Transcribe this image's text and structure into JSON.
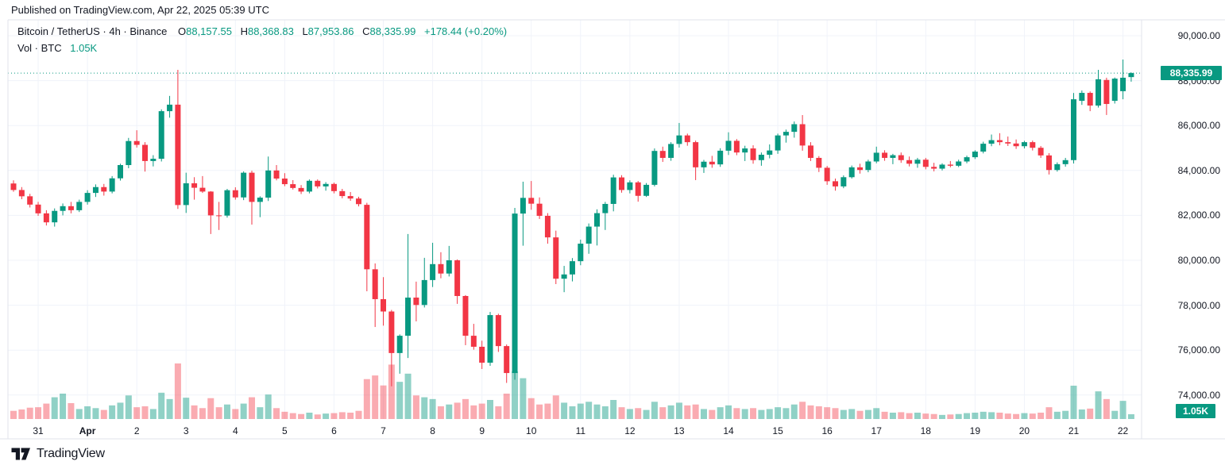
{
  "published_bar": {
    "text": "Published on TradingView.com, Apr 22, 2025 05:39 UTC"
  },
  "legend": {
    "symbol_title": "Bitcoin / TetherUS · 4h · Binance",
    "open_label": "O",
    "open": "88,157.55",
    "high_label": "H",
    "high": "88,368.83",
    "low_label": "L",
    "low": "87,953.86",
    "close_label": "C",
    "close": "88,335.99",
    "change": "+178.44 (+0.20%)",
    "volume_label": "Vol · BTC",
    "volume_value": "1.05K"
  },
  "axis": {
    "price_labels": [
      "90,000.00",
      "88,000.00",
      "86,000.00",
      "84,000.00",
      "82,000.00",
      "80,000.00",
      "78,000.00",
      "76,000.00",
      "74,000.00"
    ],
    "price_values": [
      90000,
      88000,
      86000,
      84000,
      82000,
      80000,
      78000,
      76000,
      74000
    ],
    "date_labels": [
      {
        "t": "31",
        "b": 3
      },
      {
        "t": "Apr",
        "b": 9,
        "bold": true
      },
      {
        "t": "2",
        "b": 15
      },
      {
        "t": "3",
        "b": 21
      },
      {
        "t": "4",
        "b": 27
      },
      {
        "t": "5",
        "b": 33
      },
      {
        "t": "6",
        "b": 39
      },
      {
        "t": "7",
        "b": 45
      },
      {
        "t": "8",
        "b": 51
      },
      {
        "t": "9",
        "b": 57
      },
      {
        "t": "10",
        "b": 63
      },
      {
        "t": "11",
        "b": 69
      },
      {
        "t": "12",
        "b": 75
      },
      {
        "t": "13",
        "b": 81
      },
      {
        "t": "14",
        "b": 87
      },
      {
        "t": "15",
        "b": 93
      },
      {
        "t": "16",
        "b": 99
      },
      {
        "t": "17",
        "b": 105
      },
      {
        "t": "18",
        "b": 111
      },
      {
        "t": "19",
        "b": 117
      },
      {
        "t": "20",
        "b": 123
      },
      {
        "t": "21",
        "b": 129
      },
      {
        "t": "22",
        "b": 135
      }
    ],
    "last_price_label": "88,335.99",
    "last_volume_label": "1.05K"
  },
  "footer": {
    "brand": "TradingView"
  },
  "colors": {
    "up": "#089981",
    "down": "#f23645",
    "volume_up": "rgba(8,153,129,0.45)",
    "volume_down": "rgba(242,54,69,0.42)",
    "grid": "#f0f3fa",
    "border": "#e0e3eb",
    "text": "#131722",
    "accent": "#089981",
    "badge_bg": "#089981"
  },
  "chart_data": {
    "type": "candlestick",
    "title": "Bitcoin / TetherUS",
    "interval": "4h",
    "exchange": "Binance",
    "legend_ohlc": {
      "open": 88157.55,
      "high": 88368.83,
      "low": 87953.86,
      "close": 88335.99,
      "change": 178.44,
      "change_pct": 0.2
    },
    "last_close": 88335.99,
    "last_volume_btc": 1050,
    "ylim": [
      72930,
      90710
    ],
    "y_grid_step": 2000,
    "x_range": [
      "Mar 30 12:00 UTC",
      "Apr 22 04:00 UTC"
    ],
    "grid": true,
    "legend_position": "top-left",
    "price_axis_position": "right",
    "candles_format": [
      "open",
      "high",
      "low",
      "close",
      "volume_btc"
    ],
    "candles": [
      [
        83420,
        83560,
        83050,
        83130,
        1800
      ],
      [
        83130,
        83260,
        82720,
        82850,
        2100
      ],
      [
        82850,
        82960,
        82350,
        82480,
        2500
      ],
      [
        82480,
        82600,
        81980,
        82090,
        2600
      ],
      [
        82090,
        82230,
        81550,
        81690,
        3400
      ],
      [
        81690,
        82310,
        81500,
        82200,
        4800
      ],
      [
        82200,
        82530,
        82000,
        82410,
        5600
      ],
      [
        82410,
        82600,
        82090,
        82230,
        3500
      ],
      [
        82230,
        82700,
        82150,
        82600,
        2200
      ],
      [
        82600,
        83120,
        82480,
        83000,
        2800
      ],
      [
        83000,
        83380,
        82820,
        83260,
        2400
      ],
      [
        83260,
        83400,
        82880,
        83060,
        2000
      ],
      [
        83060,
        83750,
        82980,
        83650,
        3000
      ],
      [
        83650,
        84300,
        83550,
        84240,
        3600
      ],
      [
        84240,
        85450,
        84100,
        85310,
        5200
      ],
      [
        85310,
        85790,
        85020,
        85140,
        2600
      ],
      [
        85140,
        85260,
        83950,
        84420,
        2800
      ],
      [
        84420,
        84680,
        84180,
        84520,
        2200
      ],
      [
        84520,
        86720,
        84400,
        86640,
        5800
      ],
      [
        86640,
        87320,
        86350,
        86930,
        4400
      ],
      [
        86930,
        88480,
        82290,
        82460,
        12250
      ],
      [
        82460,
        83900,
        82110,
        83430,
        4700
      ],
      [
        83430,
        83700,
        82700,
        83230,
        3000
      ],
      [
        83230,
        83750,
        83000,
        83060,
        2400
      ],
      [
        83060,
        83080,
        81170,
        82000,
        4600
      ],
      [
        82000,
        82600,
        81350,
        81990,
        2600
      ],
      [
        81990,
        83180,
        81900,
        83120,
        3200
      ],
      [
        83120,
        83250,
        82700,
        82800,
        2200
      ],
      [
        82800,
        83960,
        82680,
        83900,
        3400
      ],
      [
        83900,
        83990,
        81590,
        82600,
        4800
      ],
      [
        82600,
        82850,
        81920,
        82790,
        2600
      ],
      [
        82790,
        84620,
        82640,
        84000,
        5400
      ],
      [
        84000,
        84240,
        83560,
        83640,
        2400
      ],
      [
        83640,
        83880,
        83300,
        83390,
        1600
      ],
      [
        83390,
        83570,
        83150,
        83220,
        1300
      ],
      [
        83220,
        83350,
        82950,
        83060,
        1100
      ],
      [
        83060,
        83600,
        82980,
        83540,
        1400
      ],
      [
        83540,
        83600,
        83200,
        83290,
        1000
      ],
      [
        83290,
        83480,
        83100,
        83400,
        1200
      ],
      [
        83400,
        83460,
        82980,
        83080,
        1300
      ],
      [
        83080,
        83180,
        82760,
        82860,
        1500
      ],
      [
        82860,
        83040,
        82650,
        82750,
        1400
      ],
      [
        82750,
        82830,
        82400,
        82500,
        1800
      ],
      [
        82470,
        82560,
        78620,
        79600,
        8800
      ],
      [
        79600,
        79860,
        77030,
        78270,
        9600
      ],
      [
        78270,
        79250,
        77090,
        77720,
        7400
      ],
      [
        77720,
        77790,
        74390,
        75870,
        12000
      ],
      [
        75870,
        76700,
        74950,
        76640,
        8200
      ],
      [
        76640,
        81170,
        75650,
        78340,
        10000
      ],
      [
        78340,
        79050,
        77280,
        78010,
        5200
      ],
      [
        78010,
        80110,
        77900,
        79120,
        4800
      ],
      [
        79120,
        80780,
        78810,
        79830,
        4400
      ],
      [
        79830,
        80360,
        79200,
        79410,
        2800
      ],
      [
        79410,
        80640,
        79280,
        80000,
        3200
      ],
      [
        80000,
        80040,
        78060,
        78410,
        3600
      ],
      [
        78410,
        78450,
        76220,
        76640,
        4400
      ],
      [
        76640,
        77170,
        76020,
        76150,
        3000
      ],
      [
        76150,
        76420,
        75160,
        75440,
        3400
      ],
      [
        75440,
        77700,
        75300,
        77560,
        4200
      ],
      [
        77560,
        77620,
        75920,
        76180,
        2800
      ],
      [
        76180,
        76250,
        74540,
        74980,
        5600
      ],
      [
        74980,
        82330,
        74680,
        82080,
        10500
      ],
      [
        82080,
        83500,
        80650,
        82780,
        9000
      ],
      [
        82780,
        83530,
        82250,
        82520,
        4600
      ],
      [
        82520,
        82800,
        81840,
        81980,
        3200
      ],
      [
        81980,
        82100,
        80740,
        81020,
        3400
      ],
      [
        81020,
        81320,
        78940,
        79180,
        5200
      ],
      [
        79180,
        79750,
        78580,
        79370,
        3600
      ],
      [
        79370,
        80100,
        79060,
        79960,
        2800
      ],
      [
        79960,
        80920,
        79780,
        80740,
        3400
      ],
      [
        80740,
        81640,
        80290,
        81500,
        3800
      ],
      [
        81500,
        82270,
        80660,
        82100,
        3200
      ],
      [
        82100,
        82600,
        81350,
        82510,
        2800
      ],
      [
        82510,
        83810,
        82180,
        83690,
        4200
      ],
      [
        83690,
        83790,
        83010,
        83130,
        2600
      ],
      [
        83130,
        83560,
        82980,
        83470,
        2200
      ],
      [
        83470,
        83530,
        82610,
        82870,
        2400
      ],
      [
        82870,
        83440,
        82820,
        83360,
        2000
      ],
      [
        83360,
        84980,
        83290,
        84870,
        3800
      ],
      [
        84870,
        85060,
        84380,
        84560,
        2600
      ],
      [
        84560,
        85260,
        84430,
        85180,
        3000
      ],
      [
        85180,
        86115,
        85020,
        85560,
        3600
      ],
      [
        85560,
        85640,
        85100,
        85260,
        3000
      ],
      [
        85260,
        85330,
        83570,
        84140,
        3200
      ],
      [
        84140,
        84470,
        83890,
        84390,
        2200
      ],
      [
        84390,
        84650,
        84120,
        84270,
        2000
      ],
      [
        84270,
        84990,
        84160,
        84880,
        2600
      ],
      [
        84880,
        85700,
        84690,
        85320,
        3000
      ],
      [
        85320,
        85400,
        84680,
        84800,
        2400
      ],
      [
        84800,
        85100,
        84420,
        84980,
        2200
      ],
      [
        84980,
        85120,
        84300,
        84460,
        2400
      ],
      [
        84460,
        84800,
        84210,
        84700,
        2000
      ],
      [
        84700,
        85160,
        84540,
        84890,
        2200
      ],
      [
        84890,
        85640,
        84740,
        85560,
        2600
      ],
      [
        85560,
        85820,
        85240,
        85720,
        2400
      ],
      [
        85720,
        86180,
        85460,
        86060,
        3200
      ],
      [
        86060,
        86466,
        84880,
        85110,
        3800
      ],
      [
        85110,
        85260,
        84420,
        84560,
        3000
      ],
      [
        84560,
        84640,
        83930,
        84120,
        2800
      ],
      [
        84120,
        84200,
        83360,
        83520,
        2600
      ],
      [
        83520,
        83640,
        83100,
        83290,
        2400
      ],
      [
        83290,
        83780,
        83210,
        83700,
        2000
      ],
      [
        83700,
        84220,
        83640,
        84140,
        2200
      ],
      [
        84140,
        84300,
        83860,
        84020,
        1800
      ],
      [
        84020,
        84480,
        83920,
        84400,
        2000
      ],
      [
        84400,
        85060,
        84320,
        84790,
        2400
      ],
      [
        84790,
        84900,
        84430,
        84560,
        1600
      ],
      [
        84560,
        84740,
        84280,
        84680,
        1400
      ],
      [
        84680,
        84800,
        84340,
        84460,
        1500
      ],
      [
        84460,
        84620,
        84180,
        84300,
        1300
      ],
      [
        84300,
        84560,
        84120,
        84480,
        1400
      ],
      [
        84480,
        84560,
        84050,
        84160,
        1200
      ],
      [
        84160,
        84340,
        83960,
        84080,
        1100
      ],
      [
        84080,
        84320,
        84000,
        84260,
        900
      ],
      [
        84260,
        84420,
        84140,
        84210,
        1000
      ],
      [
        84210,
        84480,
        84150,
        84400,
        1100
      ],
      [
        84400,
        84660,
        84320,
        84590,
        1300
      ],
      [
        84590,
        84900,
        84510,
        84840,
        1400
      ],
      [
        84840,
        85280,
        84760,
        85190,
        1600
      ],
      [
        85190,
        85600,
        85080,
        85350,
        1500
      ],
      [
        85350,
        85660,
        85120,
        85260,
        1400
      ],
      [
        85260,
        85510,
        85090,
        85200,
        1200
      ],
      [
        85200,
        85380,
        84960,
        85080,
        1100
      ],
      [
        85080,
        85320,
        84980,
        85260,
        1300
      ],
      [
        85260,
        85330,
        84890,
        85010,
        1200
      ],
      [
        85010,
        85090,
        84560,
        84670,
        1400
      ],
      [
        84670,
        84770,
        83820,
        84020,
        2600
      ],
      [
        84020,
        84360,
        83950,
        84280,
        1600
      ],
      [
        84280,
        84560,
        84170,
        84460,
        1800
      ],
      [
        84460,
        87450,
        84310,
        87170,
        7350
      ],
      [
        87100,
        87560,
        86920,
        87455,
        2100
      ],
      [
        87455,
        87520,
        86640,
        86890,
        2300
      ],
      [
        86890,
        88480,
        86800,
        88060,
        6100
      ],
      [
        88030,
        88130,
        86470,
        86960,
        4400
      ],
      [
        87100,
        88140,
        86980,
        88090,
        1800
      ],
      [
        87530,
        88940,
        87170,
        88130,
        4000
      ],
      [
        88157.55,
        88368.83,
        87953.86,
        88335.99,
        1050
      ]
    ]
  }
}
